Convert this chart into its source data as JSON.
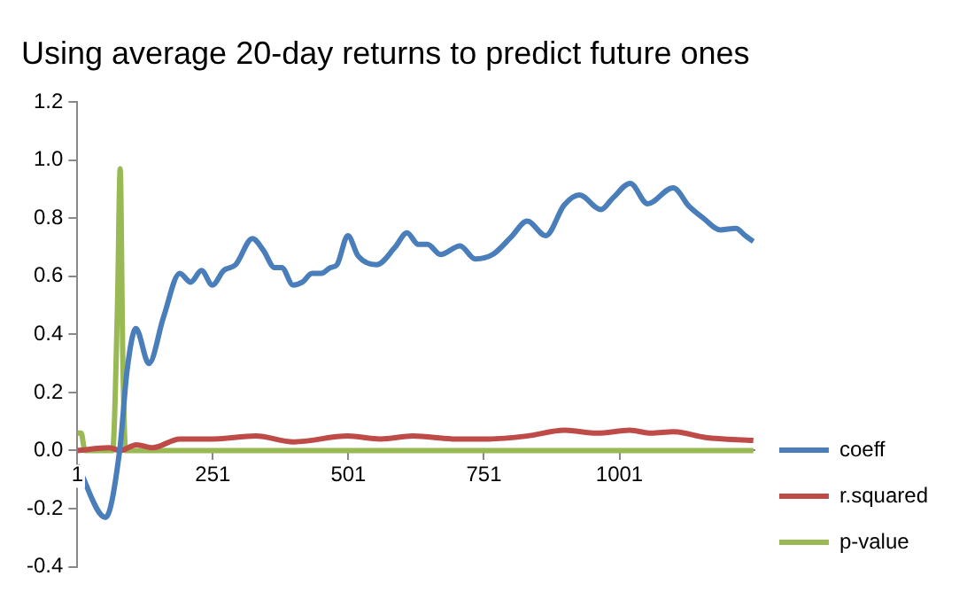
{
  "chart_data": {
    "type": "line",
    "title": "Using average 20-day returns to predict future ones",
    "xlim": [
      1,
      1250
    ],
    "xticks": [
      1,
      251,
      501,
      751,
      1001
    ],
    "ylim": [
      -0.4,
      1.2
    ],
    "yticks": [
      -0.4,
      -0.2,
      {
        "value": 0,
        "label": "0.0"
      },
      0.2,
      0.4,
      0.6,
      0.8,
      {
        "value": 1,
        "label": "1.0"
      },
      1.2
    ],
    "grid": false,
    "legend": "right",
    "marker": "none",
    "line_style": "solid",
    "series": [
      {
        "name": "coeff",
        "color": "#4a7ebb",
        "x": [
          1,
          53,
          79,
          93,
          109,
          133,
          160,
          190,
          210,
          230,
          250,
          271,
          293,
          324,
          344,
          365,
          378,
          399,
          416,
          434,
          451,
          468,
          480,
          500,
          519,
          553,
          587,
          609,
          630,
          647,
          671,
          707,
          735,
          767,
          801,
          831,
          865,
          899,
          927,
          967,
          989,
          1021,
          1053,
          1100,
          1130,
          1156,
          1187,
          1216,
          1233,
          1248
        ],
        "values": [
          -0.05,
          -0.23,
          0.0,
          0.28,
          0.42,
          0.3,
          0.46,
          0.61,
          0.58,
          0.62,
          0.57,
          0.62,
          0.64,
          0.73,
          0.69,
          0.63,
          0.63,
          0.57,
          0.58,
          0.61,
          0.61,
          0.63,
          0.64,
          0.74,
          0.67,
          0.64,
          0.7,
          0.75,
          0.71,
          0.71,
          0.675,
          0.705,
          0.66,
          0.675,
          0.735,
          0.79,
          0.74,
          0.845,
          0.88,
          0.83,
          0.87,
          0.92,
          0.85,
          0.905,
          0.84,
          0.8,
          0.76,
          0.765,
          0.74,
          0.72
        ]
      },
      {
        "name": "r.squared",
        "color": "#be4b48",
        "x": [
          1,
          60,
          80,
          110,
          140,
          190,
          250,
          330,
          400,
          500,
          560,
          620,
          700,
          760,
          830,
          900,
          960,
          1020,
          1060,
          1100,
          1160,
          1248
        ],
        "values": [
          0.0,
          0.01,
          0.0,
          0.02,
          0.01,
          0.04,
          0.04,
          0.05,
          0.03,
          0.05,
          0.04,
          0.05,
          0.04,
          0.04,
          0.05,
          0.07,
          0.06,
          0.07,
          0.06,
          0.065,
          0.045,
          0.035
        ]
      },
      {
        "name": "p-value",
        "color": "#98b954",
        "x": [
          1,
          8,
          15,
          66,
          75,
          80,
          85,
          90,
          1248
        ],
        "values": [
          0.06,
          0.06,
          0.0,
          0.0,
          0.5,
          0.97,
          0.3,
          0.0,
          0.0
        ]
      }
    ]
  }
}
